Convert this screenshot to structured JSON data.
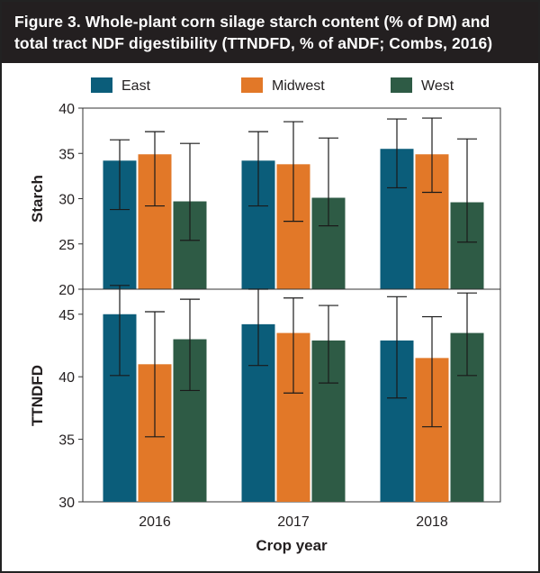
{
  "title": {
    "line1": "Figure 3. Whole-plant corn silage starch content (% of DM) and",
    "line2": "total tract NDF digestibility (TTNDFD, % of aNDF; Combs, 2016)"
  },
  "colors": {
    "title_background": "#231f20",
    "East": "#0b5d7a",
    "Midwest": "#e27828",
    "West": "#2e5b45",
    "error_bar": "#1a1a1a"
  },
  "chart_data": [
    {
      "type": "bar",
      "panel": "top",
      "categories": [
        "2016",
        "2017",
        "2018"
      ],
      "ylabel": "Starch",
      "xlabel": "",
      "ylim": [
        20,
        40
      ],
      "yticks": [
        20,
        25,
        30,
        35,
        40
      ],
      "legend": "top",
      "grid": false,
      "series": [
        {
          "name": "East",
          "values": [
            34.2,
            34.2,
            35.5
          ],
          "err_low": [
            28.8,
            29.2,
            31.2
          ],
          "err_high": [
            36.5,
            37.4,
            38.8
          ]
        },
        {
          "name": "Midwest",
          "values": [
            34.9,
            33.8,
            34.9
          ],
          "err_low": [
            29.2,
            27.5,
            30.7
          ],
          "err_high": [
            37.4,
            38.5,
            38.9
          ]
        },
        {
          "name": "West",
          "values": [
            29.7,
            30.1,
            29.6
          ],
          "err_low": [
            25.4,
            27.0,
            25.2
          ],
          "err_high": [
            36.1,
            36.7,
            36.6
          ]
        }
      ]
    },
    {
      "type": "bar",
      "panel": "bottom",
      "categories": [
        "2016",
        "2017",
        "2018"
      ],
      "ylabel": "TTNDFD",
      "xlabel": "Crop year",
      "ylim": [
        30,
        47
      ],
      "yticks": [
        30,
        35,
        40,
        45
      ],
      "legend": "top",
      "grid": false,
      "series": [
        {
          "name": "East",
          "values": [
            45.0,
            44.2,
            42.9
          ],
          "err_low": [
            40.1,
            40.9,
            38.3
          ],
          "err_high": [
            47.3,
            47.0,
            46.4
          ]
        },
        {
          "name": "Midwest",
          "values": [
            41.0,
            43.5,
            41.5
          ],
          "err_low": [
            35.2,
            38.7,
            36.0
          ],
          "err_high": [
            45.2,
            46.3,
            44.8
          ]
        },
        {
          "name": "West",
          "values": [
            43.0,
            42.9,
            43.5
          ],
          "err_low": [
            38.9,
            39.5,
            40.1
          ],
          "err_high": [
            46.2,
            45.7,
            46.7
          ]
        }
      ]
    }
  ]
}
